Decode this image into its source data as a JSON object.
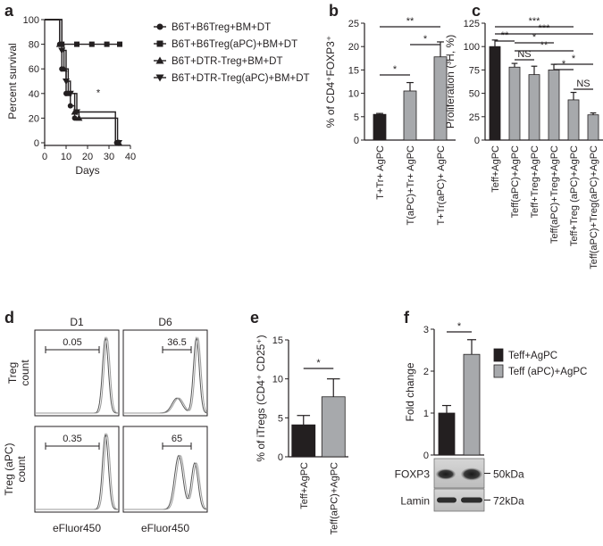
{
  "panels": {
    "a": "a",
    "b": "b",
    "c": "c",
    "d": "d",
    "e": "e",
    "f": "f"
  },
  "chart_data": [
    {
      "id": "a",
      "type": "line",
      "subtype": "kaplan-meier",
      "xlabel": "Days",
      "ylabel": "Percent survival",
      "xlim": [
        0,
        40
      ],
      "ylim": [
        0,
        100
      ],
      "xticks": [
        0,
        10,
        20,
        30,
        40
      ],
      "yticks": [
        0,
        20,
        40,
        60,
        80,
        100
      ],
      "annotation": "*",
      "legend_position": "top-right",
      "series": [
        {
          "name": "B6T+B6Treg+BM+DT",
          "marker": "circle",
          "steps": [
            [
              0,
              100
            ],
            [
              7,
              100
            ],
            [
              7,
              80
            ],
            [
              8,
              80
            ],
            [
              8,
              60
            ],
            [
              10,
              60
            ],
            [
              10,
              40
            ],
            [
              12,
              40
            ],
            [
              12,
              30
            ],
            [
              14,
              30
            ],
            [
              14,
              20
            ],
            [
              33,
              20
            ],
            [
              33,
              0
            ],
            [
              34,
              0
            ]
          ]
        },
        {
          "name": "B6T+B6Treg(aPC)+BM+DT",
          "marker": "square",
          "steps": [
            [
              0,
              100
            ],
            [
              8,
              100
            ],
            [
              8,
              80
            ],
            [
              35,
              80
            ]
          ]
        },
        {
          "name": "B6T+DTR-Treg+BM+DT",
          "marker": "triangle-up",
          "steps": [
            [
              0,
              100
            ],
            [
              7,
              100
            ],
            [
              7,
              80
            ],
            [
              9,
              80
            ],
            [
              9,
              60
            ],
            [
              11,
              60
            ],
            [
              11,
              40
            ],
            [
              14,
              40
            ],
            [
              14,
              25
            ],
            [
              16,
              25
            ],
            [
              16,
              20
            ],
            [
              34,
              20
            ],
            [
              34,
              0
            ],
            [
              35,
              0
            ]
          ]
        },
        {
          "name": "B6T+DTR-Treg(aPC)+BM+DT",
          "marker": "triangle-down",
          "steps": [
            [
              0,
              100
            ],
            [
              8,
              100
            ],
            [
              8,
              75
            ],
            [
              10,
              75
            ],
            [
              10,
              50
            ],
            [
              12,
              50
            ],
            [
              12,
              40
            ],
            [
              15,
              40
            ],
            [
              15,
              25
            ],
            [
              33,
              25
            ],
            [
              33,
              0
            ],
            [
              35,
              0
            ]
          ]
        }
      ]
    },
    {
      "id": "b",
      "type": "bar",
      "ylabel": "% of CD4⁺FOXP3⁺",
      "ylim": [
        0,
        25
      ],
      "yticks": [
        0,
        5,
        10,
        15,
        20,
        25
      ],
      "categories": [
        "T+Tr+ AgPC",
        "T(aPC)+Tr+ AgPC",
        "T+Tr(aPC)+ AgPC"
      ],
      "values": [
        5.5,
        10.5,
        17.8
      ],
      "errors": [
        0.2,
        1.8,
        3.2
      ],
      "colors": [
        "#231f20",
        "#a7a9ac",
        "#a7a9ac"
      ],
      "significance": [
        {
          "pair": [
            0,
            1
          ],
          "label": "*"
        },
        {
          "pair": [
            1,
            2
          ],
          "label": "*"
        },
        {
          "pair": [
            0,
            2
          ],
          "label": "**"
        }
      ]
    },
    {
      "id": "c",
      "type": "bar",
      "ylabel": "Proliferation (³H, %)",
      "ylim": [
        0,
        125
      ],
      "yticks": [
        0,
        25,
        50,
        75,
        100,
        125
      ],
      "categories": [
        "Teff+AgPC",
        "Teff(aPC)+AgPC",
        "Teff+Treg+AgPC",
        "Teff(aPC)+Treg+AgPC",
        "Teff+Treg (aPC)+AgPC",
        "Teff(aPC)+Treg(aPC)+AgPC"
      ],
      "values": [
        100,
        78,
        70,
        75,
        43,
        27
      ],
      "errors": [
        7,
        4,
        9,
        6,
        8,
        2
      ],
      "colors": [
        "#231f20",
        "#a7a9ac",
        "#a7a9ac",
        "#a7a9ac",
        "#a7a9ac",
        "#a7a9ac"
      ],
      "significance": [
        {
          "pair": [
            0,
            1
          ],
          "label": "**"
        },
        {
          "pair": [
            1,
            2
          ],
          "label": "NS"
        },
        {
          "pair": [
            1,
            3
          ],
          "label": "*"
        },
        {
          "pair": [
            1,
            4
          ],
          "label": "**"
        },
        {
          "pair": [
            3,
            4
          ],
          "label": "*"
        },
        {
          "pair": [
            3,
            5
          ],
          "label": "*"
        },
        {
          "pair": [
            4,
            5
          ],
          "label": "NS"
        },
        {
          "pair": [
            0,
            4
          ],
          "label": "***"
        },
        {
          "pair": [
            0,
            5
          ],
          "label": "***"
        }
      ]
    },
    {
      "id": "d",
      "type": "histogram",
      "column_titles": [
        "D1",
        "D6"
      ],
      "row_labels": [
        "Treg count",
        "Treg (aPC) count"
      ],
      "xlabel": "eFluor450",
      "gates": [
        [
          "0.05",
          "36.5"
        ],
        [
          "0.35",
          "65"
        ]
      ]
    },
    {
      "id": "e",
      "type": "bar",
      "ylabel": "% of iTregs (CD4⁺ CD25⁺)",
      "ylim": [
        0,
        15
      ],
      "yticks": [
        0,
        5,
        10,
        15
      ],
      "categories": [
        "Teff+AgPC",
        "Teff(aPC)+AgPC"
      ],
      "values": [
        4.1,
        7.7
      ],
      "errors": [
        1.2,
        2.3
      ],
      "colors": [
        "#231f20",
        "#a7a9ac"
      ],
      "significance": [
        {
          "pair": [
            0,
            1
          ],
          "label": "*"
        }
      ]
    },
    {
      "id": "f",
      "type": "bar",
      "ylabel": "Fold change",
      "ylim": [
        0,
        3
      ],
      "yticks": [
        0,
        1,
        2,
        3
      ],
      "categories": [
        "Teff+AgPC",
        "Teff (aPC)+AgPC"
      ],
      "values": [
        1.0,
        2.4
      ],
      "errors": [
        0.18,
        0.35
      ],
      "colors": [
        "#231f20",
        "#a7a9ac"
      ],
      "significance": [
        {
          "pair": [
            0,
            1
          ],
          "label": "*"
        }
      ],
      "legend": [
        "Teff+AgPC",
        "Teff (aPC)+AgPC"
      ],
      "legend_position": "right",
      "blots": [
        {
          "label": "FOXP3",
          "size": "50kDa"
        },
        {
          "label": "Lamin",
          "size": "72kDa"
        }
      ]
    }
  ]
}
